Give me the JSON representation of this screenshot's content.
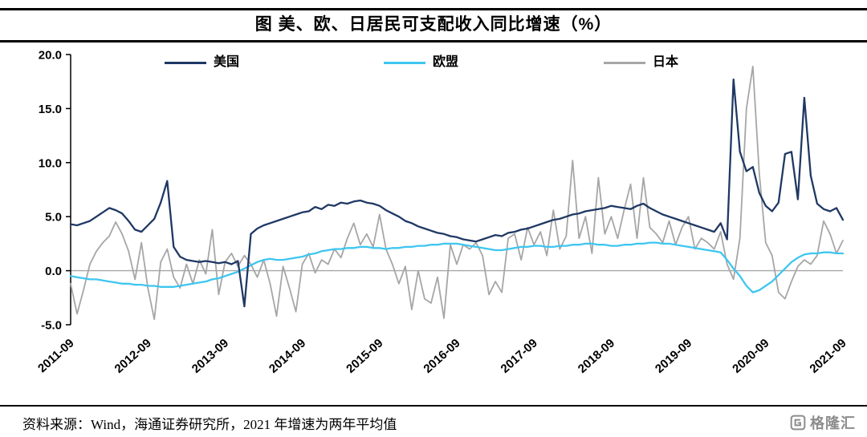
{
  "header": {
    "title": "图 美、欧、日居民可支配收入同比增速（%）"
  },
  "legend": [
    {
      "label": "美国",
      "color": "#1F3864"
    },
    {
      "label": "欧盟",
      "color": "#3EC6F0"
    },
    {
      "label": "日本",
      "color": "#A6A6A6"
    }
  ],
  "footer": {
    "source": "资料来源：Wind，海通证券研究所，2021 年增速为两年平均值",
    "logo_text": "格隆汇"
  },
  "chart_data": {
    "type": "line",
    "title": "图 美、欧、日居民可支配收入同比增速（%）",
    "xlabel": "",
    "ylabel": "",
    "x_start": "2011-09",
    "x_end": "2021-09",
    "x_freq": "monthly",
    "x_count": 121,
    "ylim": [
      -5,
      20
    ],
    "grid": false,
    "zero_line": true,
    "legend_position": "top",
    "y_ticks": [
      {
        "label": "20.0",
        "value": 20.0
      },
      {
        "label": "15.0",
        "value": 15.0
      },
      {
        "label": "10.0",
        "value": 10.0
      },
      {
        "label": "5.0",
        "value": 5.0
      },
      {
        "label": "0.0",
        "value": 0.0
      },
      {
        "label": "-5.0",
        "value": -5.0
      }
    ],
    "x_ticks": [
      {
        "label": "2011-09",
        "index": 0
      },
      {
        "label": "2012-09",
        "index": 12
      },
      {
        "label": "2013-09",
        "index": 24
      },
      {
        "label": "2014-09",
        "index": 36
      },
      {
        "label": "2015-09",
        "index": 48
      },
      {
        "label": "2016-09",
        "index": 60
      },
      {
        "label": "2017-09",
        "index": 72
      },
      {
        "label": "2018-09",
        "index": 84
      },
      {
        "label": "2019-09",
        "index": 96
      },
      {
        "label": "2020-09",
        "index": 108
      },
      {
        "label": "2021-09",
        "index": 120
      }
    ],
    "series": [
      {
        "name": "美国",
        "color": "#1F3864",
        "width": 2.3,
        "values": [
          4.3,
          4.2,
          4.4,
          4.6,
          5.0,
          5.4,
          5.8,
          5.6,
          5.3,
          4.6,
          3.8,
          3.6,
          4.2,
          4.8,
          6.3,
          8.3,
          2.2,
          1.3,
          1.0,
          0.9,
          0.8,
          0.9,
          0.8,
          0.7,
          0.8,
          0.6,
          0.9,
          -3.3,
          3.4,
          3.9,
          4.2,
          4.4,
          4.6,
          4.8,
          5.0,
          5.2,
          5.4,
          5.5,
          5.9,
          5.7,
          6.1,
          6.0,
          6.3,
          6.2,
          6.4,
          6.5,
          6.3,
          6.2,
          6.0,
          5.6,
          5.3,
          5.0,
          4.6,
          4.4,
          4.1,
          3.9,
          3.7,
          3.5,
          3.4,
          3.2,
          3.1,
          2.9,
          2.8,
          2.7,
          2.9,
          3.1,
          3.3,
          3.2,
          3.5,
          3.6,
          3.8,
          3.9,
          4.1,
          4.3,
          4.5,
          4.7,
          4.8,
          5.0,
          5.2,
          5.3,
          5.5,
          5.6,
          5.7,
          5.8,
          6.0,
          5.9,
          5.8,
          5.7,
          6.0,
          6.2,
          5.8,
          5.5,
          5.2,
          5.0,
          4.8,
          4.6,
          4.4,
          4.2,
          4.0,
          3.8,
          3.6,
          4.4,
          2.9,
          17.7,
          11.0,
          9.2,
          9.6,
          7.2,
          6.0,
          5.5,
          6.3,
          10.8,
          11.0,
          6.6,
          16.0,
          8.8,
          6.2,
          5.7,
          5.5,
          5.8,
          4.7
        ]
      },
      {
        "name": "欧盟",
        "color": "#3EC6F0",
        "width": 2.3,
        "values": [
          -0.5,
          -0.6,
          -0.7,
          -0.8,
          -0.8,
          -0.9,
          -1.0,
          -1.1,
          -1.2,
          -1.2,
          -1.3,
          -1.3,
          -1.4,
          -1.4,
          -1.5,
          -1.5,
          -1.5,
          -1.4,
          -1.3,
          -1.2,
          -1.1,
          -1.0,
          -0.8,
          -0.7,
          -0.5,
          -0.3,
          -0.1,
          0.2,
          0.5,
          0.8,
          1.0,
          1.1,
          1.0,
          1.0,
          1.1,
          1.2,
          1.3,
          1.5,
          1.6,
          1.8,
          1.9,
          2.0,
          2.0,
          2.1,
          2.1,
          2.2,
          2.2,
          2.1,
          2.1,
          2.0,
          2.1,
          2.1,
          2.2,
          2.2,
          2.3,
          2.3,
          2.4,
          2.4,
          2.5,
          2.5,
          2.5,
          2.4,
          2.3,
          2.2,
          2.1,
          2.0,
          1.9,
          1.9,
          2.0,
          2.1,
          2.2,
          2.2,
          2.3,
          2.3,
          2.2,
          2.2,
          2.3,
          2.3,
          2.4,
          2.4,
          2.5,
          2.5,
          2.4,
          2.4,
          2.3,
          2.3,
          2.4,
          2.4,
          2.5,
          2.5,
          2.6,
          2.6,
          2.5,
          2.5,
          2.4,
          2.3,
          2.2,
          2.1,
          2.0,
          1.9,
          1.8,
          1.7,
          1.0,
          0.2,
          -0.5,
          -1.4,
          -2.0,
          -1.8,
          -1.4,
          -1.0,
          -0.4,
          0.2,
          0.8,
          1.2,
          1.5,
          1.6,
          1.6,
          1.7,
          1.7,
          1.6,
          1.6
        ]
      },
      {
        "name": "日本",
        "color": "#A6A6A6",
        "width": 1.8,
        "values": [
          -1.2,
          -4.0,
          -1.8,
          0.6,
          1.8,
          2.6,
          3.2,
          4.5,
          3.4,
          1.8,
          -0.8,
          2.6,
          -1.6,
          -4.5,
          0.8,
          2.0,
          -0.6,
          -1.6,
          0.6,
          -1.2,
          1.0,
          -0.3,
          3.8,
          -2.2,
          0.8,
          1.6,
          0.4,
          1.4,
          0.6,
          -0.6,
          1.0,
          -1.2,
          -4.2,
          0.4,
          -1.6,
          -3.8,
          0.6,
          1.6,
          -0.2,
          1.0,
          0.6,
          2.0,
          1.2,
          3.0,
          4.4,
          2.4,
          3.4,
          2.2,
          5.2,
          2.0,
          0.6,
          -1.2,
          0.4,
          -3.6,
          0.0,
          -2.6,
          -3.0,
          -0.6,
          -4.4,
          2.4,
          0.6,
          2.4,
          2.0,
          2.6,
          1.4,
          -2.2,
          -1.0,
          -2.0,
          3.0,
          3.4,
          1.0,
          4.0,
          2.4,
          3.6,
          1.4,
          5.6,
          2.0,
          3.2,
          10.2,
          3.0,
          5.0,
          1.6,
          8.6,
          3.4,
          5.0,
          3.0,
          5.6,
          8.0,
          3.0,
          8.6,
          4.0,
          3.4,
          2.6,
          4.6,
          2.4,
          4.0,
          5.0,
          2.0,
          3.0,
          2.6,
          2.0,
          3.6,
          0.6,
          -0.8,
          3.0,
          15.0,
          18.9,
          9.0,
          2.6,
          1.4,
          -2.0,
          -2.6,
          -1.0,
          0.4,
          1.0,
          0.6,
          1.4,
          4.6,
          3.4,
          1.6,
          2.8
        ]
      }
    ]
  }
}
